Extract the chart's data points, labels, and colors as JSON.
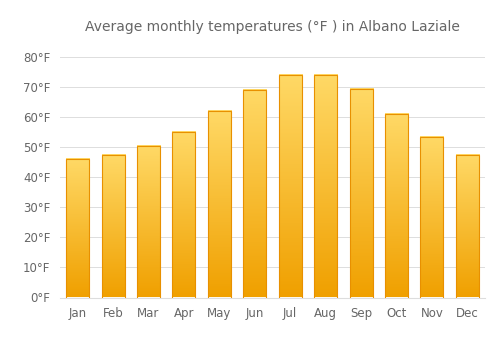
{
  "title": "Average monthly temperatures (°F ) in Albano Laziale",
  "months": [
    "Jan",
    "Feb",
    "Mar",
    "Apr",
    "May",
    "Jun",
    "Jul",
    "Aug",
    "Sep",
    "Oct",
    "Nov",
    "Dec"
  ],
  "values": [
    46,
    47.5,
    50.5,
    55,
    62,
    69,
    74,
    74,
    69.5,
    61,
    53.5,
    47.5
  ],
  "bar_color_top": "#FFD966",
  "bar_color_bottom": "#F0A000",
  "bar_edge_color": "#E89000",
  "background_color": "#FFFFFF",
  "grid_color": "#DDDDDD",
  "text_color": "#666666",
  "ylim": [
    0,
    85
  ],
  "yticks": [
    0,
    10,
    20,
    30,
    40,
    50,
    60,
    70,
    80
  ],
  "ytick_labels": [
    "0°F",
    "10°F",
    "20°F",
    "30°F",
    "40°F",
    "50°F",
    "60°F",
    "70°F",
    "80°F"
  ],
  "title_fontsize": 10,
  "tick_fontsize": 8.5
}
